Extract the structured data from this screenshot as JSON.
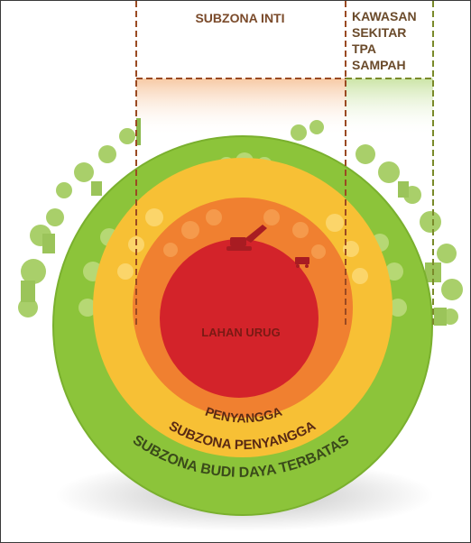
{
  "headers": {
    "core": "SUBZONA INTI",
    "around": [
      "KAWASAN",
      "SEKITAR",
      "TPA",
      "SAMPAH"
    ]
  },
  "zones": {
    "landfill": "LAHAN URUG",
    "buffer": "PENYANGGA",
    "buffer_subzone": "SUBZONA PENYANGGA",
    "limited_cultivation": "SUBZONA BUDI DAYA TERBATAS"
  },
  "colors": {
    "landfill": "#d3232a",
    "buffer": "#f08030",
    "buffer_subzone": "#f7c035",
    "limited_cultivation": "#8cc43a",
    "dashed_core": "#9a4a22",
    "dashed_around": "#7a8a2a",
    "text_dark": "#5a2a14",
    "text_header": "#7a4a2a"
  }
}
